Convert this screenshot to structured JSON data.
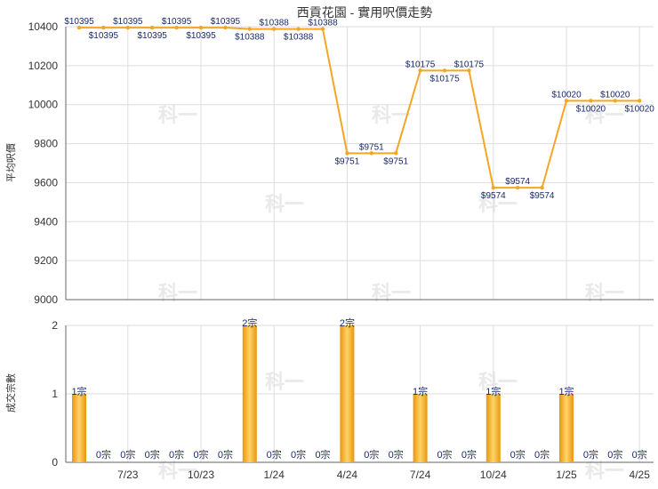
{
  "chart_data": [
    {
      "type": "line",
      "title": "西貢花園 - 實用呎價走勢",
      "ylabel": "平均呎價",
      "ylim": [
        9000,
        10400
      ],
      "yticks": [
        9000,
        9200,
        9400,
        9600,
        9800,
        10000,
        10200,
        10400
      ],
      "x": [
        "2023-05",
        "2023-06",
        "2023-07",
        "2023-08",
        "2023-09",
        "2023-10",
        "2023-11",
        "2023-12",
        "2024-01",
        "2024-02",
        "2024-03",
        "2024-04",
        "2024-05",
        "2024-06",
        "2024-07",
        "2024-08",
        "2024-09",
        "2024-10",
        "2024-11",
        "2024-12",
        "2025-01",
        "2025-02",
        "2025-03",
        "2025-04"
      ],
      "values": [
        10395,
        10395,
        10395,
        10395,
        10395,
        10395,
        10395,
        10388,
        10388,
        10388,
        10388,
        9751,
        9751,
        9751,
        10175,
        10175,
        10175,
        9574,
        9574,
        9574,
        10020,
        10020,
        10020,
        10020
      ],
      "labels": [
        "$10395",
        "$10395",
        "$10395",
        "$10395",
        "$10395",
        "$10395",
        "$10395",
        "$10388",
        "$10388",
        "$10388",
        "$10388",
        "$9751",
        "$9751",
        "$9751",
        "$10175",
        "$10175",
        "$10175",
        "$9574",
        "$9574",
        "$9574",
        "$10020",
        "$10020",
        "$10020",
        "$10020"
      ],
      "color": "#f5a623",
      "grid": true
    },
    {
      "type": "bar",
      "ylabel": "成交宗數",
      "ylim": [
        0,
        2
      ],
      "yticks": [
        0,
        1,
        2
      ],
      "x": [
        "2023-05",
        "2023-06",
        "2023-07",
        "2023-08",
        "2023-09",
        "2023-10",
        "2023-11",
        "2023-12",
        "2024-01",
        "2024-02",
        "2024-03",
        "2024-04",
        "2024-05",
        "2024-06",
        "2024-07",
        "2024-08",
        "2024-09",
        "2024-10",
        "2024-11",
        "2024-12",
        "2025-01",
        "2025-02",
        "2025-03",
        "2025-04"
      ],
      "values": [
        1,
        0,
        0,
        0,
        0,
        0,
        0,
        2,
        0,
        0,
        0,
        2,
        0,
        0,
        1,
        0,
        0,
        1,
        0,
        0,
        1,
        0,
        0,
        0
      ],
      "labels": [
        "1宗",
        "0宗",
        "0宗",
        "0宗",
        "0宗",
        "0宗",
        "0宗",
        "2宗",
        "0宗",
        "0宗",
        "0宗",
        "2宗",
        "0宗",
        "0宗",
        "1宗",
        "0宗",
        "0宗",
        "1宗",
        "0宗",
        "0宗",
        "1宗",
        "0宗",
        "0宗",
        "0宗"
      ],
      "color": "#f0a818",
      "grid": true
    }
  ],
  "x_ticks": [
    {
      "index": 2,
      "label": "7/23"
    },
    {
      "index": 5,
      "label": "10/23"
    },
    {
      "index": 8,
      "label": "1/24"
    },
    {
      "index": 11,
      "label": "4/24"
    },
    {
      "index": 14,
      "label": "7/24"
    },
    {
      "index": 17,
      "label": "10/24"
    },
    {
      "index": 20,
      "label": "1/25"
    },
    {
      "index": 23,
      "label": "4/25"
    }
  ],
  "watermark": "科一"
}
